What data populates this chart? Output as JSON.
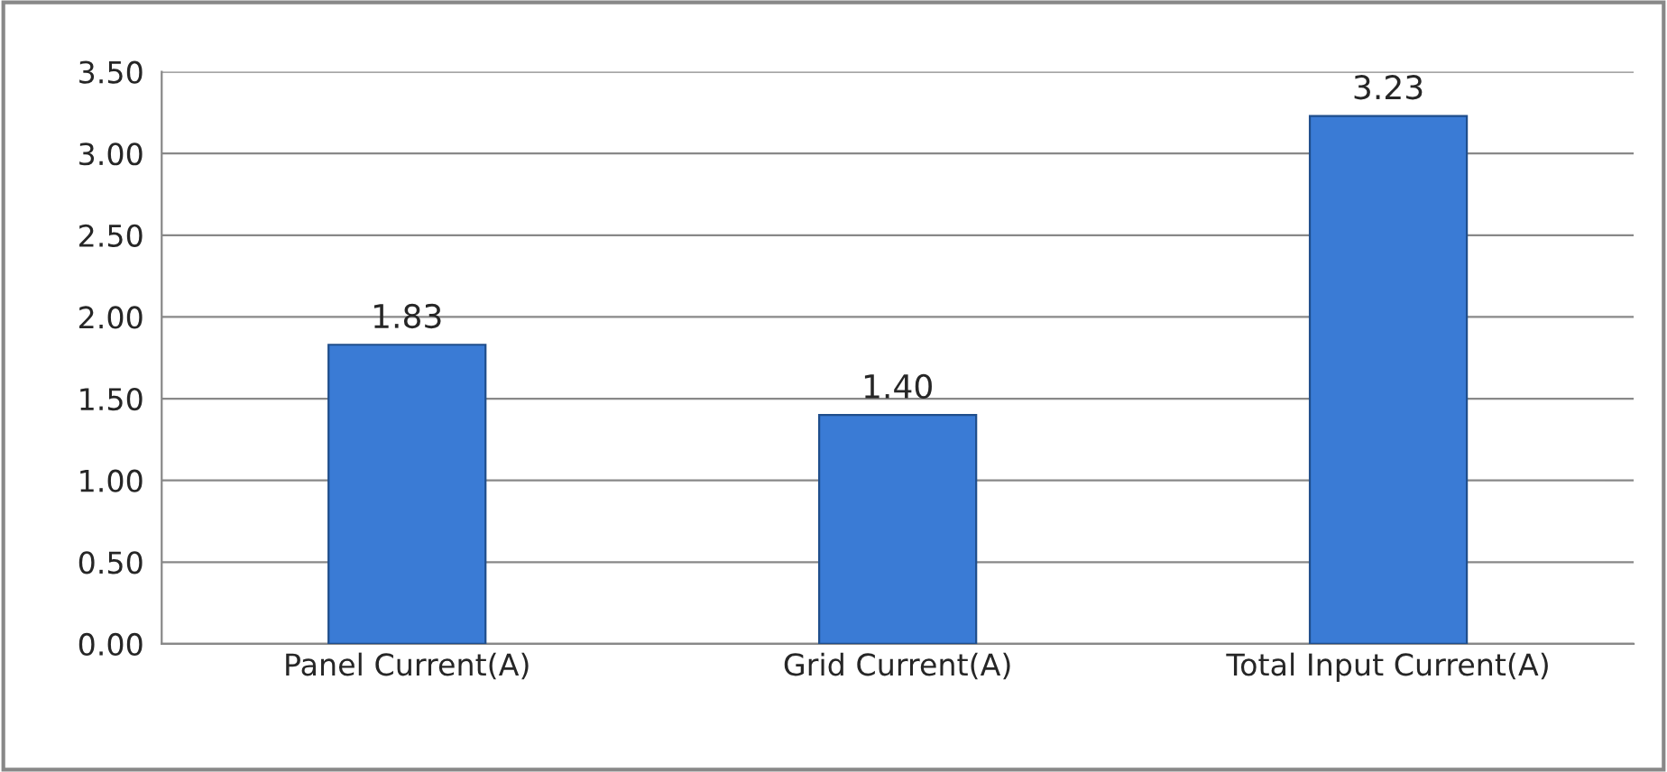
{
  "chart_data": {
    "type": "bar",
    "categories": [
      "Panel Current(A)",
      "Grid Current(A)",
      "Total Input Current(A)"
    ],
    "values": [
      1.83,
      1.4,
      3.23
    ],
    "value_labels": [
      "1.83",
      "1.40",
      "3.23"
    ],
    "color": "#3a7bd5",
    "ylim": [
      0,
      3.5
    ],
    "yticks": [
      {
        "value": 0,
        "label": "0.00"
      },
      {
        "value": 0.5,
        "label": "0.50"
      },
      {
        "value": 1,
        "label": "1.00"
      },
      {
        "value": 1.5,
        "label": "1.50"
      },
      {
        "value": 2,
        "label": "2.00"
      },
      {
        "value": 2.5,
        "label": "2.50"
      },
      {
        "value": 3,
        "label": "3.00"
      },
      {
        "value": 3.5,
        "label": "3.50"
      }
    ],
    "grid": "y"
  }
}
